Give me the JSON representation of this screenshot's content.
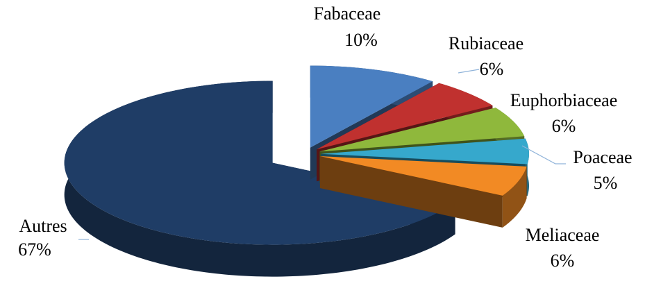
{
  "chart_data": {
    "type": "pie",
    "categories": [
      "Fabaceae",
      "Rubiaceae",
      "Euphorbiaceae",
      "Poaceae",
      "Meliaceae",
      "Autres"
    ],
    "values": [
      10,
      6,
      6,
      5,
      6,
      67
    ],
    "value_labels": [
      "10%",
      "6%",
      "6%",
      "5%",
      "6%",
      "67%"
    ],
    "colors": [
      "#4a7fc1",
      "#c0312f",
      "#8fb83c",
      "#36a8cc",
      "#f28a24",
      "#1f3d66"
    ]
  }
}
